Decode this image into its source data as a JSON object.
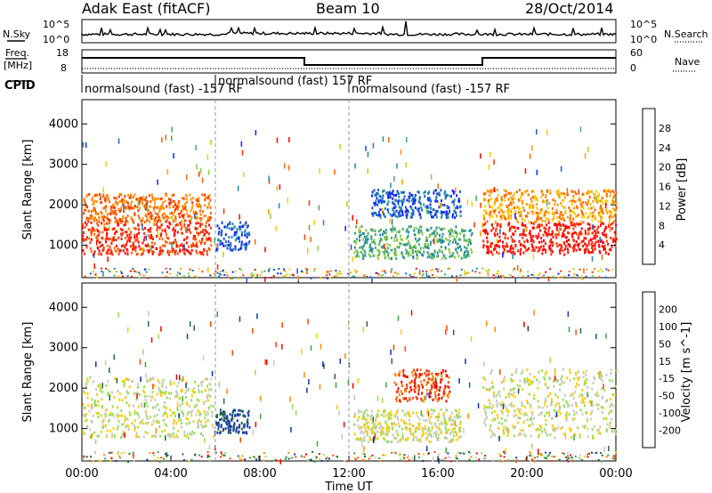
{
  "header": {
    "radar": "Adak East (fitACF)",
    "beam": "Beam 10",
    "date": "28/Oct/2014"
  },
  "noise_panel": {
    "left_label": "N.Sky",
    "right_label": "N.Search",
    "left_ticks": [
      "10^5",
      "10^0"
    ],
    "right_ticks": [
      "10^5",
      "10^0"
    ]
  },
  "freq_panel": {
    "left_label_1": "Freq.",
    "left_label_2": "[MHz]",
    "right_label": "Nave",
    "left_ticks": [
      "18",
      "8"
    ],
    "right_ticks": [
      "60",
      "0"
    ]
  },
  "cpid": {
    "label": "CPID",
    "segments": [
      {
        "start_hr": 0,
        "end_hr": 6,
        "text": "normalsound (fast) -157 RF"
      },
      {
        "start_hr": 6,
        "end_hr": 12,
        "text": "normalsound (fast) 157 RF"
      },
      {
        "start_hr": 12,
        "end_hr": 24,
        "text": "normalsound (fast) -157 RF"
      }
    ]
  },
  "chart_data": [
    {
      "type": "heatmap",
      "name": "power",
      "ylabel": "Slant Range [km]",
      "ylim": [
        200,
        4600
      ],
      "yticks": [
        1000,
        2000,
        3000,
        4000
      ],
      "xlim": [
        0,
        24
      ],
      "colorbar": {
        "label": "Power [dB]",
        "ticks": [
          "28",
          "24",
          "20",
          "16",
          "12",
          "8",
          "4"
        ],
        "colors": [
          "#ff0000",
          "#ff3300",
          "#ff6600",
          "#ff9900",
          "#ffcc00",
          "#cccc00",
          "#88cc44",
          "#44aa66",
          "#2288aa",
          "#2255cc",
          "#1122ff"
        ]
      },
      "regions": [
        {
          "t0": 0.0,
          "t1": 5.8,
          "r0": 800,
          "r1": 1600,
          "color_index": 1
        },
        {
          "t0": 0.0,
          "t1": 5.8,
          "r0": 1600,
          "r1": 2300,
          "color_index": 2
        },
        {
          "t0": 6.0,
          "t1": 7.5,
          "r0": 900,
          "r1": 1600,
          "color_index": 9
        },
        {
          "t0": 12.2,
          "t1": 17.5,
          "r0": 700,
          "r1": 1500,
          "color_index": 7
        },
        {
          "t0": 13.0,
          "t1": 17.0,
          "r0": 1700,
          "r1": 2400,
          "color_index": 9
        },
        {
          "t0": 18.0,
          "t1": 24.0,
          "r0": 800,
          "r1": 1600,
          "color_index": 0
        },
        {
          "t0": 18.0,
          "t1": 24.0,
          "r0": 1600,
          "r1": 2400,
          "color_index": 3
        }
      ]
    },
    {
      "type": "heatmap",
      "name": "velocity",
      "ylabel": "Slant Range [km]",
      "ylim": [
        200,
        4600
      ],
      "yticks": [
        1000,
        2000,
        3000,
        4000
      ],
      "xlim": [
        0,
        24
      ],
      "colorbar": {
        "label": "Velocity [m s^-1]",
        "ticks": [
          "200",
          "100",
          "50",
          "15",
          "-15",
          "-50",
          "-100",
          "-200"
        ],
        "colors": [
          "#1133aa",
          "#226644",
          "#33aa33",
          "#99dd55",
          "#c8c8c0",
          "#ffcc00",
          "#ff8800",
          "#ff4400",
          "#ee0000"
        ]
      },
      "regions": [
        {
          "t0": 0.0,
          "t1": 5.9,
          "r0": 800,
          "r1": 2300,
          "color_index": 4
        },
        {
          "t0": 6.0,
          "t1": 7.5,
          "r0": 900,
          "r1": 1500,
          "color_index": 0
        },
        {
          "t0": 12.2,
          "t1": 17.0,
          "r0": 700,
          "r1": 1500,
          "color_index": 4
        },
        {
          "t0": 14.0,
          "t1": 16.5,
          "r0": 1700,
          "r1": 2500,
          "color_index": 7
        },
        {
          "t0": 18.0,
          "t1": 24.0,
          "r0": 800,
          "r1": 2500,
          "color_index": 4
        }
      ]
    }
  ],
  "x_axis": {
    "label": "Time UT",
    "ticks": [
      "00:00",
      "04:00",
      "08:00",
      "12:00",
      "16:00",
      "20:00",
      "00:00"
    ]
  }
}
